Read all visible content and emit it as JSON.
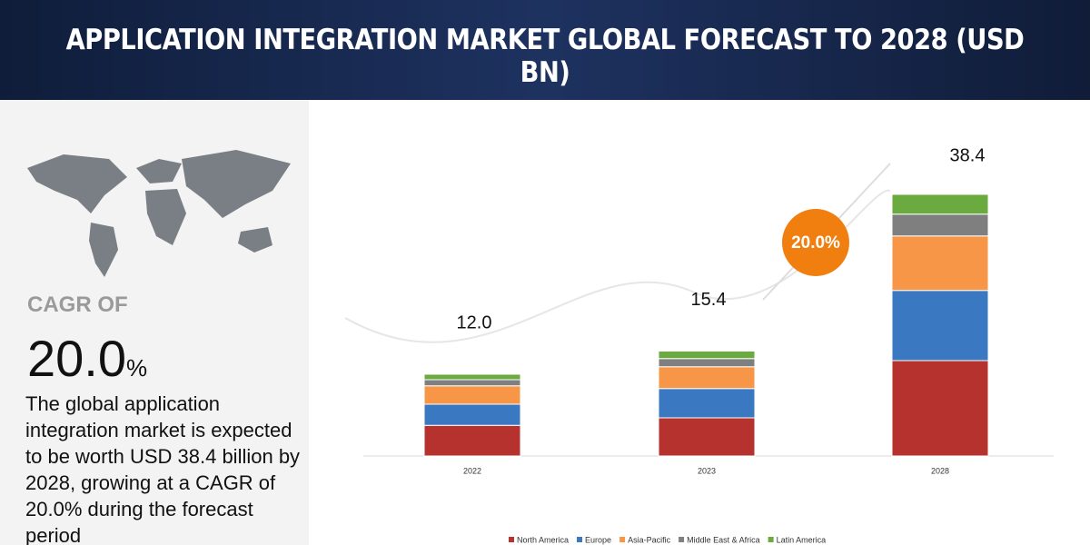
{
  "chart_data": {
    "type": "stacked-bar",
    "title": "APPLICATION INTEGRATION MARKET GLOBAL FORECAST TO 2028 (USD BN)",
    "categories": [
      "2022",
      "2023",
      "2028"
    ],
    "series": [
      {
        "name": "North America",
        "color": "#b5322e",
        "values": [
          4.5,
          5.6,
          14.0
        ]
      },
      {
        "name": "Europe",
        "color": "#3a78c2",
        "values": [
          3.1,
          4.3,
          10.3
        ]
      },
      {
        "name": "Asia-Pacific",
        "color": "#f79646",
        "values": [
          2.7,
          3.2,
          8.0
        ]
      },
      {
        "name": "Middle East & Africa",
        "color": "#7f7f7f",
        "values": [
          0.9,
          1.2,
          3.2
        ]
      },
      {
        "name": "Latin America",
        "color": "#6aaa3e",
        "values": [
          0.8,
          1.1,
          2.9
        ]
      }
    ],
    "totals": [
      12,
      15.4,
      38.4
    ],
    "total_labels": [
      "12.0",
      "15.4",
      "38.4"
    ],
    "cagr_badge": "20.0%",
    "legend": "bottom"
  },
  "panel": {
    "cagr_label": "CAGR OF",
    "cagr_value": "20.0",
    "cagr_unit": "%",
    "description": "The global application integration market is expected to be worth USD 38.4 billion by 2028, growing at a CAGR of 20.0% during the forecast period"
  }
}
